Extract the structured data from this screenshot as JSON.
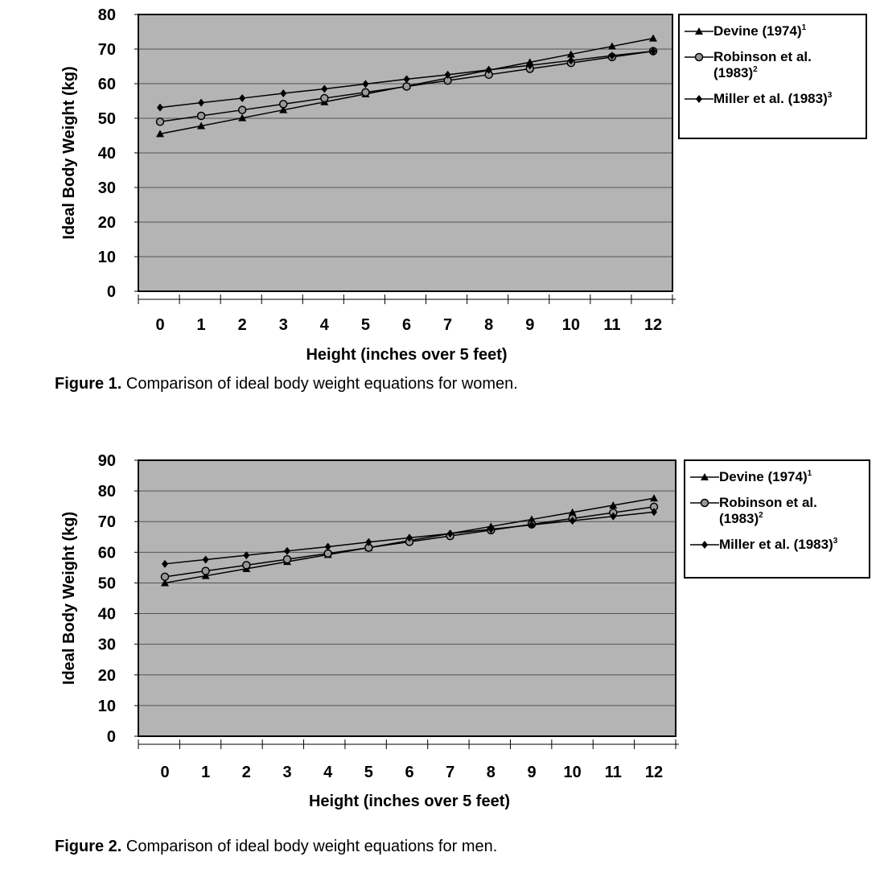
{
  "chart_data": [
    {
      "type": "line",
      "ylabel": "Ideal Body Weight (kg)",
      "xlabel": "Height (inches over 5 feet)",
      "x": [
        0,
        1,
        2,
        3,
        4,
        5,
        6,
        7,
        8,
        9,
        10,
        11,
        12
      ],
      "ylim": [
        0,
        80
      ],
      "yticks": [
        0,
        10,
        20,
        30,
        40,
        50,
        60,
        70,
        80
      ],
      "grid": true,
      "legend_placement": "right",
      "series": [
        {
          "name": "Devine (1974)",
          "sup": "1",
          "marker": "triangle",
          "values": [
            45.5,
            47.8,
            50.1,
            52.4,
            54.7,
            57.0,
            59.3,
            61.6,
            63.9,
            66.2,
            68.5,
            70.8,
            73.1
          ]
        },
        {
          "name": "Robinson et al. (1983)",
          "name_line1": "Robinson et al.",
          "name_line2": "(1983)",
          "sup": "2",
          "marker": "circle",
          "values": [
            49.0,
            50.7,
            52.4,
            54.1,
            55.8,
            57.5,
            59.2,
            60.9,
            62.6,
            64.3,
            66.0,
            67.7,
            69.4
          ]
        },
        {
          "name": "Miller et al. (1983)",
          "sup": "3",
          "marker": "diamond",
          "values": [
            53.1,
            54.5,
            55.8,
            57.2,
            58.5,
            59.9,
            61.3,
            62.6,
            64.0,
            65.3,
            66.7,
            68.1,
            69.4
          ]
        }
      ],
      "caption_label": "Figure 1.",
      "caption_text": " Comparison of ideal body weight equations for women."
    },
    {
      "type": "line",
      "ylabel": "Ideal Body Weight (kg)",
      "xlabel": "Height (inches over 5 feet)",
      "x": [
        0,
        1,
        2,
        3,
        4,
        5,
        6,
        7,
        8,
        9,
        10,
        11,
        12
      ],
      "ylim": [
        0,
        90
      ],
      "yticks": [
        0,
        10,
        20,
        30,
        40,
        50,
        60,
        70,
        80,
        90
      ],
      "grid": true,
      "legend_placement": "right",
      "series": [
        {
          "name": "Devine (1974)",
          "sup": "1",
          "marker": "triangle",
          "values": [
            50.0,
            52.3,
            54.6,
            56.9,
            59.2,
            61.5,
            63.8,
            66.1,
            68.4,
            70.7,
            73.0,
            75.3,
            77.6
          ]
        },
        {
          "name": "Robinson et al. (1983)",
          "name_line1": "Robinson et al.",
          "name_line2": "(1983)",
          "sup": "2",
          "marker": "circle",
          "values": [
            52.0,
            53.9,
            55.8,
            57.7,
            59.6,
            61.5,
            63.4,
            65.3,
            67.2,
            69.1,
            71.0,
            72.9,
            74.8
          ]
        },
        {
          "name": "Miller et al. (1983)",
          "sup": "3",
          "marker": "diamond",
          "values": [
            56.2,
            57.6,
            59.0,
            60.4,
            61.8,
            63.3,
            64.7,
            66.1,
            67.5,
            68.9,
            70.3,
            71.7,
            73.1
          ]
        }
      ],
      "caption_label": "Figure 2.",
      "caption_text": " Comparison of ideal body weight equations for men."
    }
  ],
  "colors": {
    "plot_background": "#b4b4b4",
    "line": "#000000",
    "grid": "#555555"
  }
}
